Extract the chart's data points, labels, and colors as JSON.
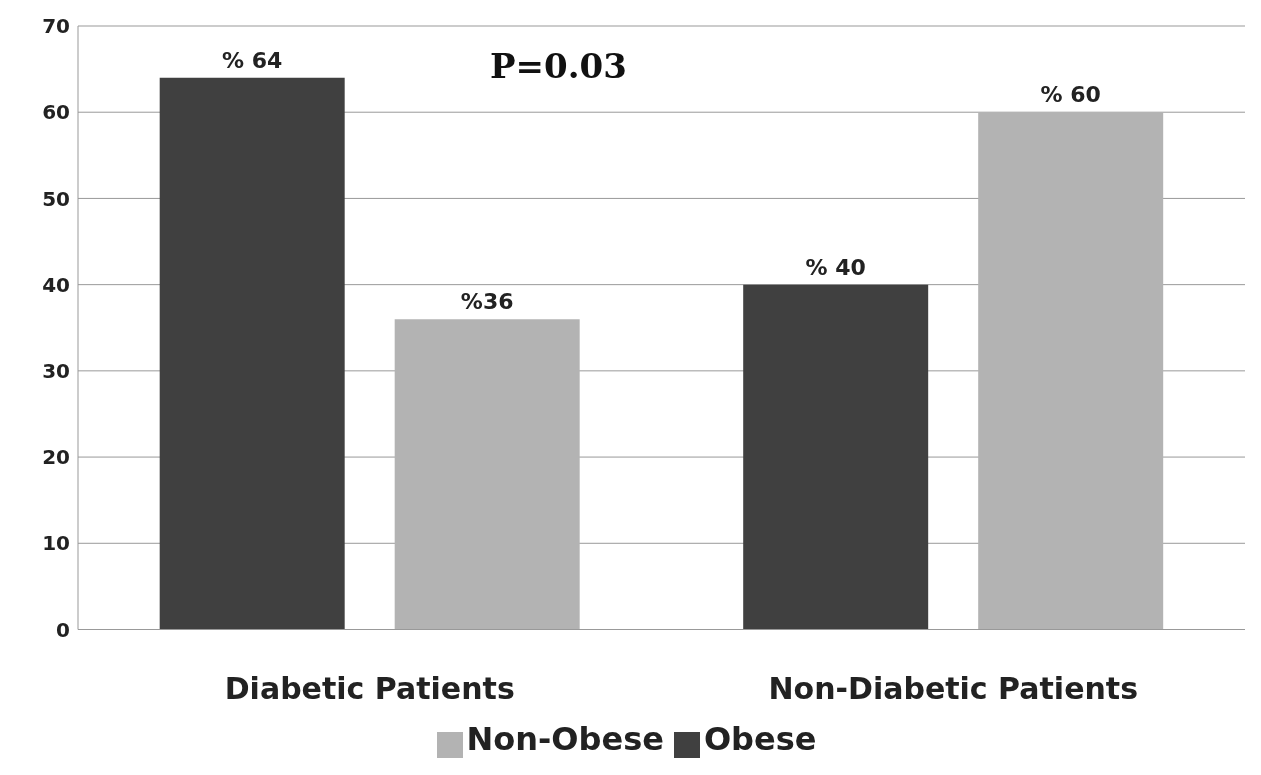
{
  "chart_data": {
    "type": "bar",
    "categories": [
      "Diabetic Patients",
      "Non-Diabetic Patients"
    ],
    "series": [
      {
        "name": "Obese",
        "color": "#404040",
        "values": [
          64,
          40
        ],
        "value_labels": [
          "% 64",
          "% 40"
        ]
      },
      {
        "name": "Non-Obese",
        "color": "#b3b3b3",
        "values": [
          36,
          60
        ],
        "value_labels": [
          "%36",
          "% 60"
        ]
      }
    ],
    "ylim": [
      0,
      70
    ],
    "yticks": [
      0,
      10,
      20,
      30,
      40,
      50,
      60,
      70
    ],
    "grid": "y",
    "legend": "bottom",
    "annotations": [
      "P=0.03"
    ]
  }
}
